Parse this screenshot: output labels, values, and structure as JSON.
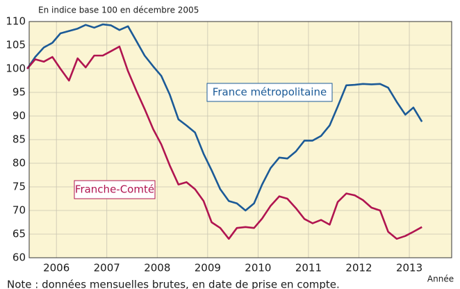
{
  "chart_data": {
    "type": "line",
    "subtitle": "En indice base 100 en décembre 2005",
    "note": "Note : données mensuelles brutes, en date de prise en compte.",
    "xlabel": "Année",
    "x": [
      2005.92,
      2006.08,
      2006.25,
      2006.42,
      2006.58,
      2006.75,
      2006.92,
      2007.08,
      2007.25,
      2007.42,
      2007.58,
      2007.75,
      2007.92,
      2008.08,
      2008.25,
      2008.42,
      2008.58,
      2008.75,
      2008.92,
      2009.08,
      2009.25,
      2009.42,
      2009.58,
      2009.75,
      2009.92,
      2010.08,
      2010.25,
      2010.42,
      2010.58,
      2010.75,
      2010.92,
      2011.08,
      2011.25,
      2011.42,
      2011.58,
      2011.75,
      2011.92,
      2012.08,
      2012.25,
      2012.42,
      2012.58,
      2012.75,
      2012.92,
      2013.08,
      2013.25,
      2013.42,
      2013.58,
      2013.75
    ],
    "series": [
      {
        "name": "France métropolitaine",
        "color": "#1b5a97",
        "values": [
          100,
          102.5,
          104.5,
          105.5,
          107.5,
          108,
          108.5,
          109.3,
          108.7,
          109.4,
          109.2,
          108.2,
          109,
          106,
          102.8,
          100.5,
          98.5,
          94.5,
          89.3,
          88,
          86.5,
          82,
          78.5,
          74.5,
          72,
          71.5,
          70,
          71.5,
          75.5,
          79,
          81.2,
          81,
          82.5,
          84.8,
          84.8,
          85.8,
          88,
          92,
          96.5,
          96.6,
          96.8,
          96.7,
          96.8,
          96,
          93,
          90.3,
          91.8,
          88.8
        ]
      },
      {
        "name": "Franche-Comté",
        "color": "#b01450",
        "values": [
          100,
          102,
          101.5,
          102.5,
          100,
          97.5,
          102.2,
          100.3,
          102.8,
          102.8,
          103.7,
          104.7,
          99.5,
          95.5,
          91.5,
          87.2,
          84,
          79.5,
          75.5,
          76,
          74.5,
          72,
          67.5,
          66.3,
          64,
          66.3,
          66.5,
          66.3,
          68.3,
          71,
          73,
          72.5,
          70.5,
          68.2,
          67.3,
          68,
          67,
          71.8,
          73.6,
          73.2,
          72.2,
          70.6,
          70,
          65.5,
          64,
          64.6,
          65.5,
          66.5
        ]
      }
    ],
    "xlim": [
      2005.96,
      2014.34
    ],
    "xticks": [
      {
        "value": 2006.5,
        "label": "2006"
      },
      {
        "value": 2007.5,
        "label": "2007"
      },
      {
        "value": 2008.5,
        "label": "2008"
      },
      {
        "value": 2009.5,
        "label": "2009"
      },
      {
        "value": 2010.5,
        "label": "2010"
      },
      {
        "value": 2011.5,
        "label": "2011"
      },
      {
        "value": 2012.5,
        "label": "2012"
      },
      {
        "value": 2013.5,
        "label": "2013"
      }
    ],
    "ylim": [
      60,
      110
    ],
    "yticks": [
      60,
      65,
      70,
      75,
      80,
      85,
      90,
      95,
      100,
      105,
      110
    ],
    "grid": true
  }
}
